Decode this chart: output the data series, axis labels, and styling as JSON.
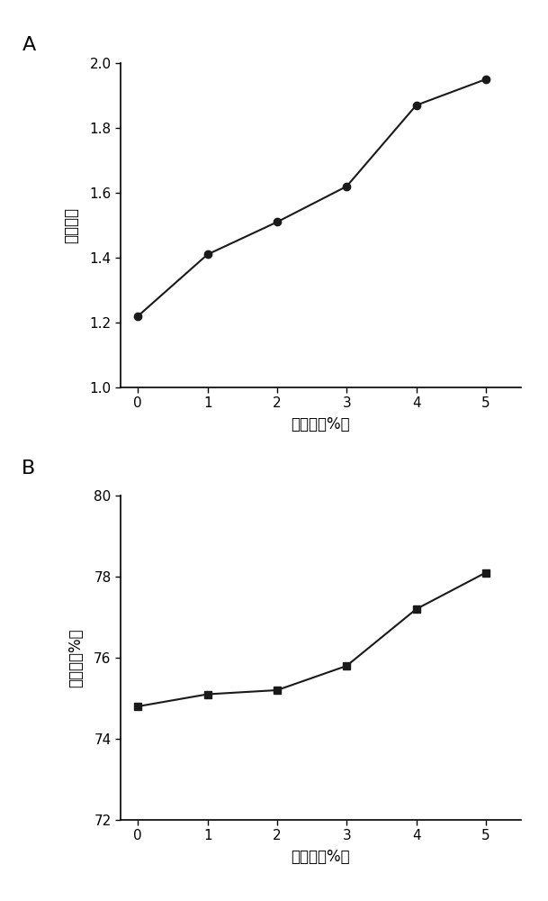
{
  "panel_A": {
    "label": "A",
    "x": [
      0,
      1,
      2,
      3,
      4,
      5
    ],
    "y": [
      1.22,
      1.41,
      1.51,
      1.62,
      1.87,
      1.95
    ],
    "xlabel": "硫酸铵（%）",
    "ylabel": "分配系数",
    "xlim": [
      -0.25,
      5.5
    ],
    "ylim": [
      1.0,
      2.0
    ],
    "yticks": [
      1.0,
      1.2,
      1.4,
      1.6,
      1.8,
      2.0
    ],
    "xticks": [
      0,
      1,
      2,
      3,
      4,
      5
    ],
    "marker": "o",
    "color": "#1a1a1a",
    "linewidth": 1.5,
    "markersize": 6
  },
  "panel_B": {
    "label": "B",
    "x": [
      0,
      1,
      2,
      3,
      4,
      5
    ],
    "y": [
      74.8,
      75.1,
      75.2,
      75.8,
      77.2,
      78.1
    ],
    "xlabel": "硫酸铵（%）",
    "ylabel": "回收率（%）",
    "xlim": [
      -0.25,
      5.5
    ],
    "ylim": [
      72,
      80
    ],
    "yticks": [
      72,
      74,
      76,
      78,
      80
    ],
    "xticks": [
      0,
      1,
      2,
      3,
      4,
      5
    ],
    "marker": "s",
    "color": "#1a1a1a",
    "linewidth": 1.5,
    "markersize": 6
  },
  "tick_fontsize": 11,
  "axis_label_fontsize": 12,
  "panel_label_fontsize": 16,
  "background_color": "#ffffff"
}
